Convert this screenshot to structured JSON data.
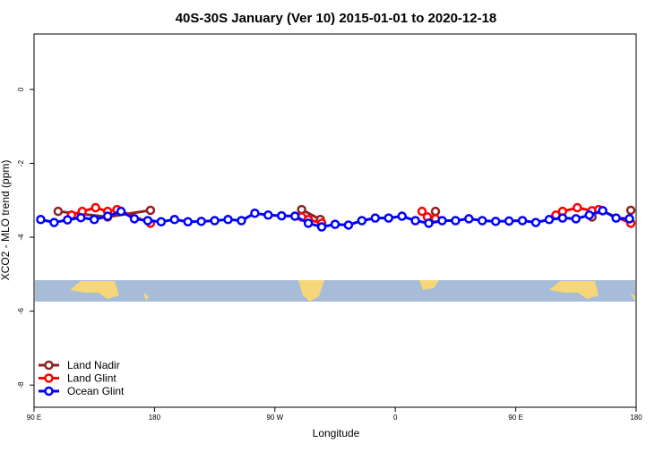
{
  "chart_data": {
    "type": "line",
    "title": "40S-30S January (Ver 10)   2015-01-01 to 2020-12-18",
    "x_label": "Longitude",
    "y_label": "XCO2 - MLO trend (ppm)",
    "xlim": [
      90,
      540
    ],
    "ylim": [
      -8.6,
      1.5
    ],
    "xticks": [
      {
        "value": 90,
        "label": "90 E"
      },
      180,
      {
        "value": 270,
        "label": "90 W"
      },
      {
        "value": 360,
        "label": "0"
      },
      {
        "value": 450,
        "label": "90 E"
      },
      {
        "value": 540,
        "label": "180"
      }
    ],
    "yticks": [
      0,
      -2,
      -4,
      -6,
      -8
    ],
    "legend": "bottom-left",
    "series": [
      {
        "name": "Land Nadir",
        "color": "#8b2323",
        "x": [
          108,
          145,
          177,
          null,
          290,
          304,
          null,
          390,
          null,
          507,
          null,
          536
        ],
        "values": [
          -3.3,
          -3.45,
          -3.27,
          null,
          -3.25,
          -3.52,
          null,
          -3.3,
          null,
          -3.45,
          null,
          -3.27
        ]
      },
      {
        "name": "Land Glint",
        "color": "#ff0000",
        "x": [
          118,
          126,
          136,
          145,
          152,
          177,
          null,
          290,
          295,
          305,
          null,
          380,
          384,
          390,
          null,
          480,
          485,
          496,
          507,
          512,
          536
        ],
        "values": [
          -3.4,
          -3.3,
          -3.2,
          -3.3,
          -3.25,
          -3.62,
          null,
          -3.45,
          -3.52,
          -3.62,
          null,
          -3.3,
          -3.45,
          -3.5,
          null,
          -3.4,
          -3.3,
          -3.2,
          -3.28,
          -3.25,
          -3.62
        ]
      },
      {
        "name": "Ocean Glint",
        "color": "#0000ff",
        "x": [
          95,
          105,
          115,
          125,
          135,
          145,
          155,
          165,
          175,
          185,
          195,
          205,
          215,
          225,
          235,
          245,
          255,
          265,
          275,
          285,
          295,
          305,
          315,
          325,
          335,
          345,
          355,
          365,
          375,
          385,
          395,
          405,
          415,
          425,
          435,
          445,
          455,
          465,
          475,
          485,
          495,
          505,
          515,
          525,
          535
        ],
        "values": [
          -3.52,
          -3.6,
          -3.53,
          -3.47,
          -3.52,
          -3.43,
          -3.3,
          -3.5,
          -3.55,
          -3.58,
          -3.52,
          -3.58,
          -3.57,
          -3.55,
          -3.52,
          -3.55,
          -3.35,
          -3.4,
          -3.42,
          -3.43,
          -3.62,
          -3.72,
          -3.65,
          -3.67,
          -3.55,
          -3.48,
          -3.48,
          -3.43,
          -3.55,
          -3.62,
          -3.55,
          -3.55,
          -3.5,
          -3.55,
          -3.57,
          -3.56,
          -3.55,
          -3.6,
          -3.52,
          -3.48,
          -3.5,
          -3.4,
          -3.28,
          -3.48,
          -3.5
        ]
      }
    ]
  }
}
